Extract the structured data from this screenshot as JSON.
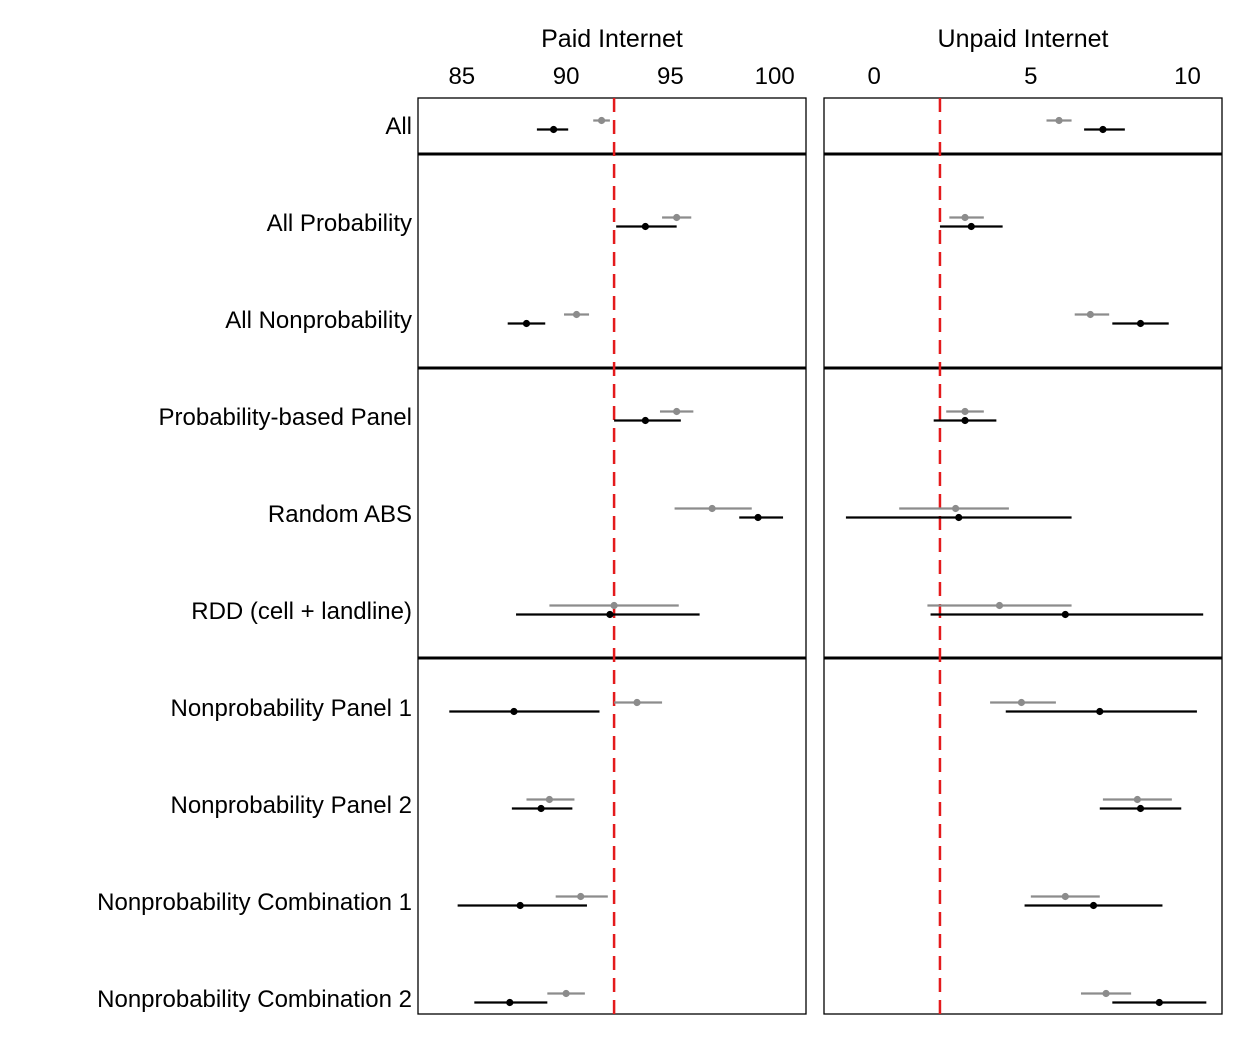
{
  "chart_data": {
    "type": "dot-whisker",
    "colors": {
      "gray_series": "#8c8c8c",
      "black_series": "#000000",
      "reference_line": "#e41a1c"
    },
    "categories": [
      "All",
      "All Probability",
      "All Nonprobability",
      "Probability-based Panel",
      "Random ABS",
      "RDD (cell + landline)",
      "Nonprobability Panel 1",
      "Nonprobability Panel 2",
      "Nonprobability Combination 1",
      "Nonprobability Combination 2"
    ],
    "groups": [
      [
        0
      ],
      [
        1,
        2
      ],
      [
        3,
        4,
        5
      ],
      [
        6,
        7,
        8,
        9
      ]
    ],
    "panels": [
      {
        "title": "Paid Internet",
        "xlim": [
          82.9,
          101.5
        ],
        "ticks": [
          85,
          90,
          95,
          100
        ],
        "tick_labels": [
          "85",
          "90",
          "95",
          "100"
        ],
        "reference_line": 92.3,
        "series": [
          {
            "color": "#8c8c8c",
            "points": [
              {
                "est": 91.7,
                "lo": 91.3,
                "hi": 92.1
              },
              {
                "est": 95.3,
                "lo": 94.6,
                "hi": 96.0
              },
              {
                "est": 90.5,
                "lo": 89.9,
                "hi": 91.1
              },
              {
                "est": 95.3,
                "lo": 94.5,
                "hi": 96.1
              },
              {
                "est": 97.0,
                "lo": 95.2,
                "hi": 98.9
              },
              {
                "est": 92.3,
                "lo": 89.2,
                "hi": 95.4
              },
              {
                "est": 93.4,
                "lo": 92.3,
                "hi": 94.6
              },
              {
                "est": 89.2,
                "lo": 88.1,
                "hi": 90.4
              },
              {
                "est": 90.7,
                "lo": 89.5,
                "hi": 92.0
              },
              {
                "est": 90.0,
                "lo": 89.1,
                "hi": 90.9
              }
            ]
          },
          {
            "color": "#000000",
            "points": [
              {
                "est": 89.4,
                "lo": 88.6,
                "hi": 90.1
              },
              {
                "est": 93.8,
                "lo": 92.4,
                "hi": 95.3
              },
              {
                "est": 88.1,
                "lo": 87.2,
                "hi": 89.0
              },
              {
                "est": 93.8,
                "lo": 92.3,
                "hi": 95.5
              },
              {
                "est": 99.2,
                "lo": 98.3,
                "hi": 100.4
              },
              {
                "est": 92.1,
                "lo": 87.6,
                "hi": 96.4
              },
              {
                "est": 87.5,
                "lo": 84.4,
                "hi": 91.6
              },
              {
                "est": 88.8,
                "lo": 87.4,
                "hi": 90.3
              },
              {
                "est": 87.8,
                "lo": 84.8,
                "hi": 91.0
              },
              {
                "est": 87.3,
                "lo": 85.6,
                "hi": 89.1
              }
            ]
          }
        ]
      },
      {
        "title": "Unpaid Internet",
        "xlim": [
          -1.6,
          11.1
        ],
        "ticks": [
          0,
          5,
          10
        ],
        "tick_labels": [
          "0",
          "5",
          "10"
        ],
        "reference_line": 2.1,
        "series": [
          {
            "color": "#8c8c8c",
            "points": [
              {
                "est": 5.9,
                "lo": 5.5,
                "hi": 6.3
              },
              {
                "est": 2.9,
                "lo": 2.4,
                "hi": 3.5
              },
              {
                "est": 6.9,
                "lo": 6.4,
                "hi": 7.5
              },
              {
                "est": 2.9,
                "lo": 2.3,
                "hi": 3.5
              },
              {
                "est": 2.6,
                "lo": 0.8,
                "hi": 4.3
              },
              {
                "est": 4.0,
                "lo": 1.7,
                "hi": 6.3
              },
              {
                "est": 4.7,
                "lo": 3.7,
                "hi": 5.8
              },
              {
                "est": 8.4,
                "lo": 7.3,
                "hi": 9.5
              },
              {
                "est": 6.1,
                "lo": 5.0,
                "hi": 7.2
              },
              {
                "est": 7.4,
                "lo": 6.6,
                "hi": 8.2
              }
            ]
          },
          {
            "color": "#000000",
            "points": [
              {
                "est": 7.3,
                "lo": 6.7,
                "hi": 8.0
              },
              {
                "est": 3.1,
                "lo": 2.1,
                "hi": 4.1
              },
              {
                "est": 8.5,
                "lo": 7.6,
                "hi": 9.4
              },
              {
                "est": 2.9,
                "lo": 1.9,
                "hi": 3.9
              },
              {
                "est": 2.7,
                "lo": -0.9,
                "hi": 6.3
              },
              {
                "est": 6.1,
                "lo": 1.8,
                "hi": 10.5
              },
              {
                "est": 7.2,
                "lo": 4.2,
                "hi": 10.3
              },
              {
                "est": 8.5,
                "lo": 7.2,
                "hi": 9.8
              },
              {
                "est": 7.0,
                "lo": 4.8,
                "hi": 9.2
              },
              {
                "est": 9.1,
                "lo": 7.6,
                "hi": 10.6
              }
            ]
          }
        ]
      }
    ]
  }
}
